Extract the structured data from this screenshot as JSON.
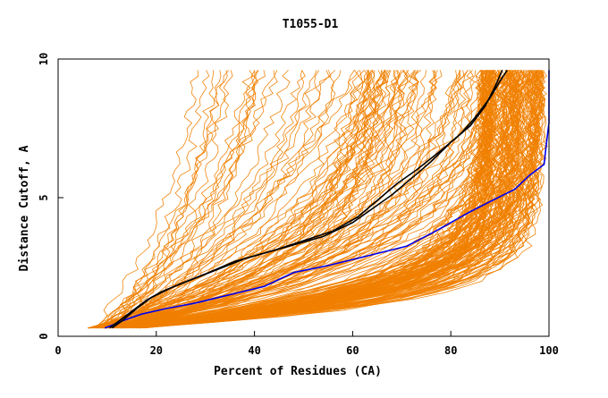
{
  "chart_data": {
    "type": "line",
    "title": "T1055-D1",
    "xlabel": "Percent of Residues (CA)",
    "ylabel": "Distance Cutoff, A",
    "xlim": [
      0,
      100
    ],
    "ylim": [
      0,
      10
    ],
    "x_ticks": [
      "0",
      "20",
      "40",
      "60",
      "80",
      "100"
    ],
    "y_ticks": [
      "0",
      "5",
      "10"
    ],
    "grid": false,
    "legend": "none",
    "colors": {
      "models": "#f08000",
      "black_model": "#000000",
      "blue_model": "#0000ee",
      "axis": "#000000"
    },
    "series": [
      {
        "color": "#0000ee",
        "points": [
          [
            9.5,
            0.3
          ],
          [
            11,
            0.4
          ],
          [
            13,
            0.55
          ],
          [
            17,
            0.8
          ],
          [
            22,
            1.0
          ],
          [
            28,
            1.2
          ],
          [
            35,
            1.5
          ],
          [
            42,
            1.8
          ],
          [
            48,
            2.3
          ],
          [
            55,
            2.55
          ],
          [
            63,
            2.9
          ],
          [
            71,
            3.25
          ],
          [
            77,
            3.8
          ],
          [
            84,
            4.5
          ],
          [
            89,
            4.95
          ],
          [
            93,
            5.3
          ],
          [
            96,
            5.8
          ],
          [
            99,
            6.2
          ],
          [
            99.5,
            7.0
          ],
          [
            100,
            7.7
          ],
          [
            100,
            8.5
          ],
          [
            100,
            9.6
          ]
        ]
      },
      {
        "color": "#000000",
        "points": [
          [
            10.5,
            0.3
          ],
          [
            12,
            0.5
          ],
          [
            15,
            0.9
          ],
          [
            18,
            1.3
          ],
          [
            21,
            1.6
          ],
          [
            25,
            1.9
          ],
          [
            30,
            2.25
          ],
          [
            36,
            2.7
          ],
          [
            42,
            3.0
          ],
          [
            48,
            3.3
          ],
          [
            54,
            3.6
          ],
          [
            60,
            4.1
          ],
          [
            64,
            4.6
          ],
          [
            68,
            5.1
          ],
          [
            72,
            5.7
          ],
          [
            76,
            6.3
          ],
          [
            80,
            7.0
          ],
          [
            84,
            7.6
          ],
          [
            87,
            8.3
          ],
          [
            89,
            9.0
          ],
          [
            90.5,
            9.6
          ]
        ]
      },
      {
        "color": "#000000",
        "points": [
          [
            11,
            0.3
          ],
          [
            13,
            0.55
          ],
          [
            16,
            1.0
          ],
          [
            19,
            1.4
          ],
          [
            23,
            1.75
          ],
          [
            28,
            2.1
          ],
          [
            33,
            2.45
          ],
          [
            38,
            2.8
          ],
          [
            44,
            3.1
          ],
          [
            50,
            3.45
          ],
          [
            56,
            3.8
          ],
          [
            61,
            4.3
          ],
          [
            65,
            4.9
          ],
          [
            69,
            5.5
          ],
          [
            73,
            6.0
          ],
          [
            78,
            6.7
          ],
          [
            82,
            7.3
          ],
          [
            85,
            7.9
          ],
          [
            88,
            8.6
          ],
          [
            90,
            9.2
          ],
          [
            91.5,
            9.6
          ]
        ]
      }
    ]
  }
}
